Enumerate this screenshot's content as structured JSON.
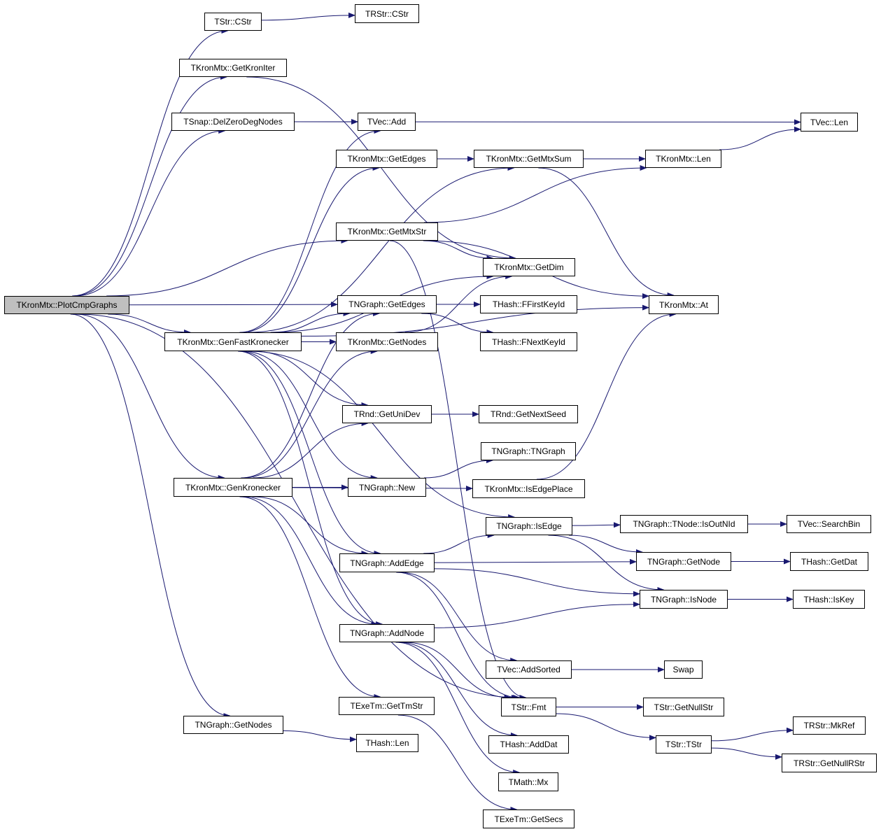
{
  "diagram": {
    "type": "call-graph",
    "root": "TKronMtx::PlotCmpGraphs",
    "colors": {
      "edge": "#191970",
      "root_fill": "#bfbfbf",
      "node_fill": "#ffffff",
      "node_border": "#000000"
    },
    "nodes": [
      "TKronMtx::PlotCmpGraphs",
      "TStr::CStr",
      "TRStr::CStr",
      "TKronMtx::GetKronIter",
      "TSnap::DelZeroDegNodes",
      "TVec::Add",
      "TVec::Len",
      "TKronMtx::GetEdges",
      "TKronMtx::GetMtxSum",
      "TKronMtx::Len",
      "TKronMtx::GetMtxStr",
      "TKronMtx::GetDim",
      "TKronMtx::At",
      "TNGraph::GetEdges",
      "THash::FFirstKeyId",
      "TKronMtx::GenFastKronecker",
      "TKronMtx::GetNodes",
      "THash::FNextKeyId",
      "TRnd::GetUniDev",
      "TRnd::GetNextSeed",
      "TNGraph::TNGraph",
      "TKronMtx::GenKronecker",
      "TNGraph::New",
      "TKronMtx::IsEdgePlace",
      "TNGraph::IsEdge",
      "TNGraph::TNode::IsOutNId",
      "TVec::SearchBin",
      "TNGraph::AddEdge",
      "TNGraph::GetNode",
      "THash::GetDat",
      "TNGraph::IsNode",
      "THash::IsKey",
      "TNGraph::AddNode",
      "TVec::AddSorted",
      "Swap",
      "TExeTm::GetTmStr",
      "TStr::Fmt",
      "TStr::GetNullStr",
      "TNGraph::GetNodes",
      "THash::Len",
      "THash::AddDat",
      "TStr::TStr",
      "TRStr::MkRef",
      "TRStr::GetNullRStr",
      "TMath::Mx",
      "TExeTm::GetSecs"
    ],
    "edges": [
      [
        0,
        1
      ],
      [
        0,
        3
      ],
      [
        0,
        4
      ],
      [
        0,
        10
      ],
      [
        0,
        13
      ],
      [
        0,
        15
      ],
      [
        0,
        21
      ],
      [
        0,
        36
      ],
      [
        0,
        38
      ],
      [
        1,
        2
      ],
      [
        3,
        11
      ],
      [
        4,
        5
      ],
      [
        4,
        6
      ],
      [
        7,
        8
      ],
      [
        8,
        9
      ],
      [
        8,
        12
      ],
      [
        9,
        6
      ],
      [
        10,
        9
      ],
      [
        10,
        11
      ],
      [
        10,
        12
      ],
      [
        10,
        36
      ],
      [
        13,
        14
      ],
      [
        13,
        17
      ],
      [
        16,
        11
      ],
      [
        15,
        5
      ],
      [
        15,
        7
      ],
      [
        15,
        8
      ],
      [
        15,
        11
      ],
      [
        15,
        13
      ],
      [
        15,
        16
      ],
      [
        15,
        12
      ],
      [
        15,
        18
      ],
      [
        15,
        22
      ],
      [
        15,
        24
      ],
      [
        15,
        27
      ],
      [
        15,
        32
      ],
      [
        18,
        19
      ],
      [
        21,
        13
      ],
      [
        21,
        16
      ],
      [
        21,
        18
      ],
      [
        21,
        22
      ],
      [
        21,
        23
      ],
      [
        21,
        27
      ],
      [
        21,
        32
      ],
      [
        21,
        35
      ],
      [
        22,
        20
      ],
      [
        23,
        12
      ],
      [
        24,
        25
      ],
      [
        24,
        28
      ],
      [
        24,
        30
      ],
      [
        25,
        26
      ],
      [
        27,
        24
      ],
      [
        27,
        28
      ],
      [
        27,
        30
      ],
      [
        27,
        33
      ],
      [
        27,
        36
      ],
      [
        28,
        29
      ],
      [
        30,
        31
      ],
      [
        32,
        30
      ],
      [
        32,
        36
      ],
      [
        32,
        40
      ],
      [
        32,
        44
      ],
      [
        33,
        34
      ],
      [
        35,
        45
      ],
      [
        36,
        37
      ],
      [
        36,
        41
      ],
      [
        41,
        42
      ],
      [
        41,
        43
      ],
      [
        38,
        39
      ]
    ]
  }
}
